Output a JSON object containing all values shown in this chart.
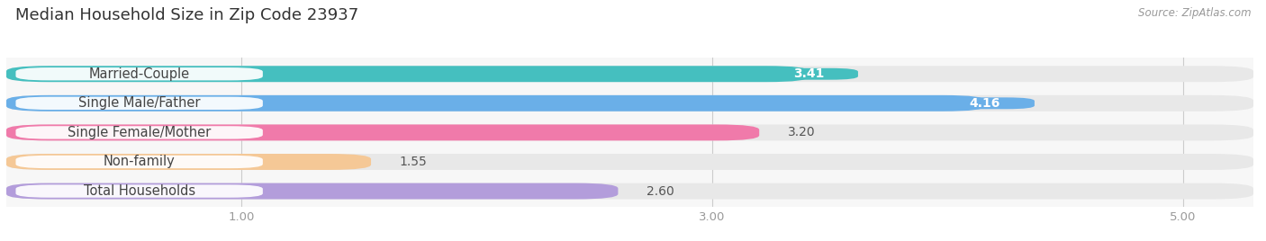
{
  "title": "Median Household Size in Zip Code 23937",
  "source": "Source: ZipAtlas.com",
  "categories": [
    "Married-Couple",
    "Single Male/Father",
    "Single Female/Mother",
    "Non-family",
    "Total Households"
  ],
  "values": [
    3.41,
    4.16,
    3.2,
    1.55,
    2.6
  ],
  "bar_colors": [
    "#45BFBF",
    "#6aafe8",
    "#f07aaa",
    "#f5c896",
    "#b39ddb"
  ],
  "value_label_inside": [
    true,
    true,
    false,
    false,
    false
  ],
  "xlim_left": 0.0,
  "xlim_right": 5.3,
  "xticks": [
    1.0,
    3.0,
    5.0
  ],
  "xtick_labels": [
    "1.00",
    "3.00",
    "5.00"
  ],
  "background_color": "#ffffff",
  "bar_bg_color": "#e8e8e8",
  "plot_bg_color": "#f7f7f7",
  "title_fontsize": 13,
  "label_fontsize": 10.5,
  "value_fontsize": 10,
  "source_fontsize": 8.5,
  "bar_height": 0.55,
  "n_bars": 5
}
